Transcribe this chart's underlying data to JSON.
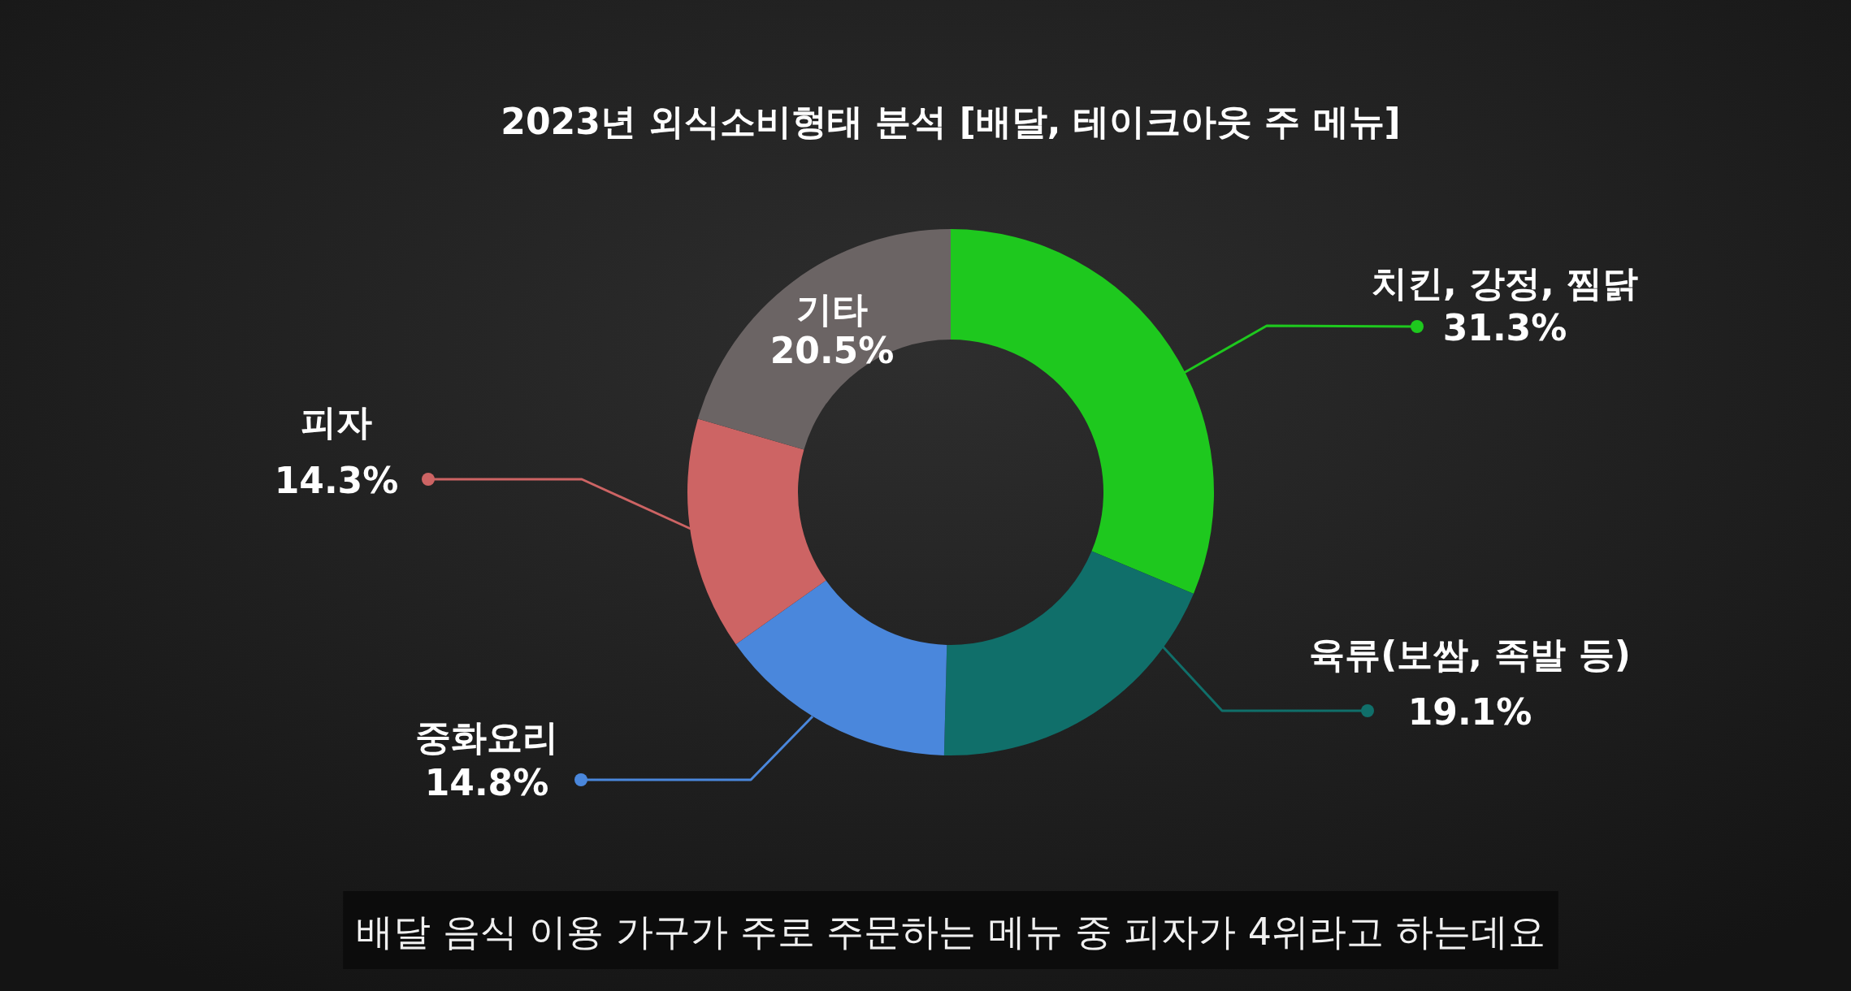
{
  "chart_data": {
    "type": "donut",
    "title": "2023년 외식소비형태 분석 [배달, 테이크아웃 주 메뉴]",
    "categories": [
      "치킨, 강정, 찜닭",
      "육류(보쌈, 족발 등)",
      "중화요리",
      "피자",
      "기타"
    ],
    "values": [
      31.3,
      19.1,
      14.8,
      14.3,
      20.5
    ],
    "colors": [
      "#1ec81e",
      "#106f6a",
      "#4a87dc",
      "#cd6464",
      "#6b6464"
    ],
    "value_labels": [
      "31.3%",
      "19.1%",
      "14.8%",
      "14.3%",
      "20.5%"
    ],
    "annotations": [
      "배달 음식 이용 가구가 주로 주문하는 메뉴 중 피자가 4위라고 하는데요"
    ],
    "legend": false
  }
}
